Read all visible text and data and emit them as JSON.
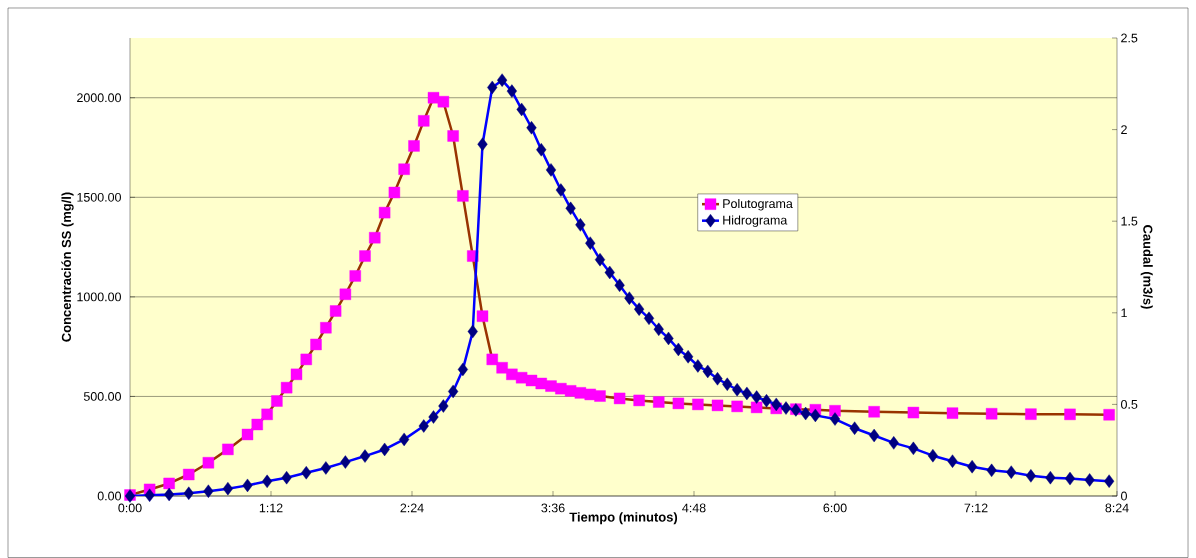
{
  "chart_data": {
    "type": "line",
    "xlabel": "Tiempo (minutos)",
    "ylabel": "Concentración SS (mg/l)",
    "y2label": "Caudal (m3/s)",
    "xlim": [
      0,
      8.4
    ],
    "xticks": [
      {
        "value": 0,
        "label": "0:00"
      },
      {
        "value": 1.2,
        "label": "1:12"
      },
      {
        "value": 2.4,
        "label": "2:24"
      },
      {
        "value": 3.6,
        "label": "3:36"
      },
      {
        "value": 4.8,
        "label": "4:48"
      },
      {
        "value": 6,
        "label": "6:00"
      },
      {
        "value": 7.2,
        "label": "7:12"
      },
      {
        "value": 8.4,
        "label": "8:24"
      }
    ],
    "ylim": [
      0,
      2300
    ],
    "yticks": [
      {
        "value": 0,
        "label": "0.00"
      },
      {
        "value": 500,
        "label": "500.00"
      },
      {
        "value": 1000,
        "label": "1000.00"
      },
      {
        "value": 1500,
        "label": "1500.00"
      },
      {
        "value": 2000,
        "label": "2000.00"
      }
    ],
    "y2lim": [
      0,
      2.5
    ],
    "y2ticks": [
      0,
      0.5,
      1,
      1.5,
      2,
      2.5
    ],
    "grid": "y",
    "legend": "center",
    "series": [
      {
        "name": "Polutograma",
        "color": "#ff00ff",
        "marker": "square",
        "x": [
          0,
          0.167,
          0.333,
          0.5,
          0.667,
          0.833,
          1,
          1.083,
          1.167,
          1.25,
          1.333,
          1.417,
          1.5,
          1.583,
          1.667,
          1.75,
          1.833,
          1.917,
          2,
          2.083,
          2.167,
          2.25,
          2.333,
          2.417,
          2.5,
          2.583,
          2.667,
          2.75,
          2.833,
          2.917,
          3,
          3.083,
          3.167,
          3.25,
          3.333,
          3.417,
          3.5,
          3.583,
          3.667,
          3.75,
          3.833,
          3.917,
          4,
          4.167,
          4.333,
          4.5,
          4.667,
          4.833,
          5,
          5.167,
          5.333,
          5.5,
          5.667,
          5.833,
          6,
          6.333,
          6.667,
          7,
          7.333,
          7.667,
          8,
          8.333
        ],
        "values": [
          5,
          33,
          63,
          108,
          167,
          234,
          309,
          359,
          410,
          477,
          544,
          611,
          686,
          761,
          845,
          929,
          1013,
          1105,
          1205,
          1297,
          1423,
          1524,
          1641,
          1758,
          1884,
          2000,
          1980,
          1808,
          1507,
          1205,
          903,
          686,
          644,
          611,
          594,
          580,
          565,
          552,
          539,
          528,
          518,
          510,
          502,
          490,
          480,
          472,
          465,
          460,
          455,
          450,
          445,
          440,
          436,
          433,
          428,
          423,
          419,
          416,
          413,
          411,
          410,
          408
        ]
      },
      {
        "name": "Hidrograma",
        "color": "#000080",
        "marker": "diamond",
        "axis": "y2",
        "x": [
          0,
          0.167,
          0.333,
          0.5,
          0.667,
          0.833,
          1,
          1.167,
          1.333,
          1.5,
          1.667,
          1.833,
          2,
          2.167,
          2.333,
          2.5,
          2.583,
          2.667,
          2.75,
          2.833,
          2.917,
          3,
          3.083,
          3.167,
          3.25,
          3.333,
          3.417,
          3.5,
          3.583,
          3.667,
          3.75,
          3.833,
          3.917,
          4,
          4.083,
          4.167,
          4.25,
          4.333,
          4.417,
          4.5,
          4.583,
          4.667,
          4.75,
          4.833,
          4.917,
          5,
          5.083,
          5.167,
          5.25,
          5.333,
          5.417,
          5.5,
          5.583,
          5.667,
          5.75,
          5.833,
          6,
          6.167,
          6.333,
          6.5,
          6.667,
          6.833,
          7,
          7.167,
          7.333,
          7.5,
          7.667,
          7.833,
          8,
          8.167,
          8.333
        ],
        "values": [
          0,
          0.004,
          0.008,
          0.015,
          0.026,
          0.04,
          0.058,
          0.08,
          0.1,
          0.127,
          0.153,
          0.185,
          0.218,
          0.254,
          0.309,
          0.382,
          0.431,
          0.491,
          0.571,
          0.691,
          0.898,
          1.92,
          2.23,
          2.27,
          2.21,
          2.11,
          2.01,
          1.89,
          1.78,
          1.67,
          1.57,
          1.48,
          1.38,
          1.29,
          1.22,
          1.15,
          1.08,
          1.02,
          0.97,
          0.91,
          0.86,
          0.8,
          0.76,
          0.71,
          0.68,
          0.64,
          0.61,
          0.58,
          0.56,
          0.54,
          0.52,
          0.5,
          0.48,
          0.47,
          0.45,
          0.44,
          0.42,
          0.37,
          0.33,
          0.29,
          0.26,
          0.22,
          0.19,
          0.16,
          0.14,
          0.13,
          0.11,
          0.1,
          0.095,
          0.088,
          0.081
        ]
      }
    ]
  }
}
